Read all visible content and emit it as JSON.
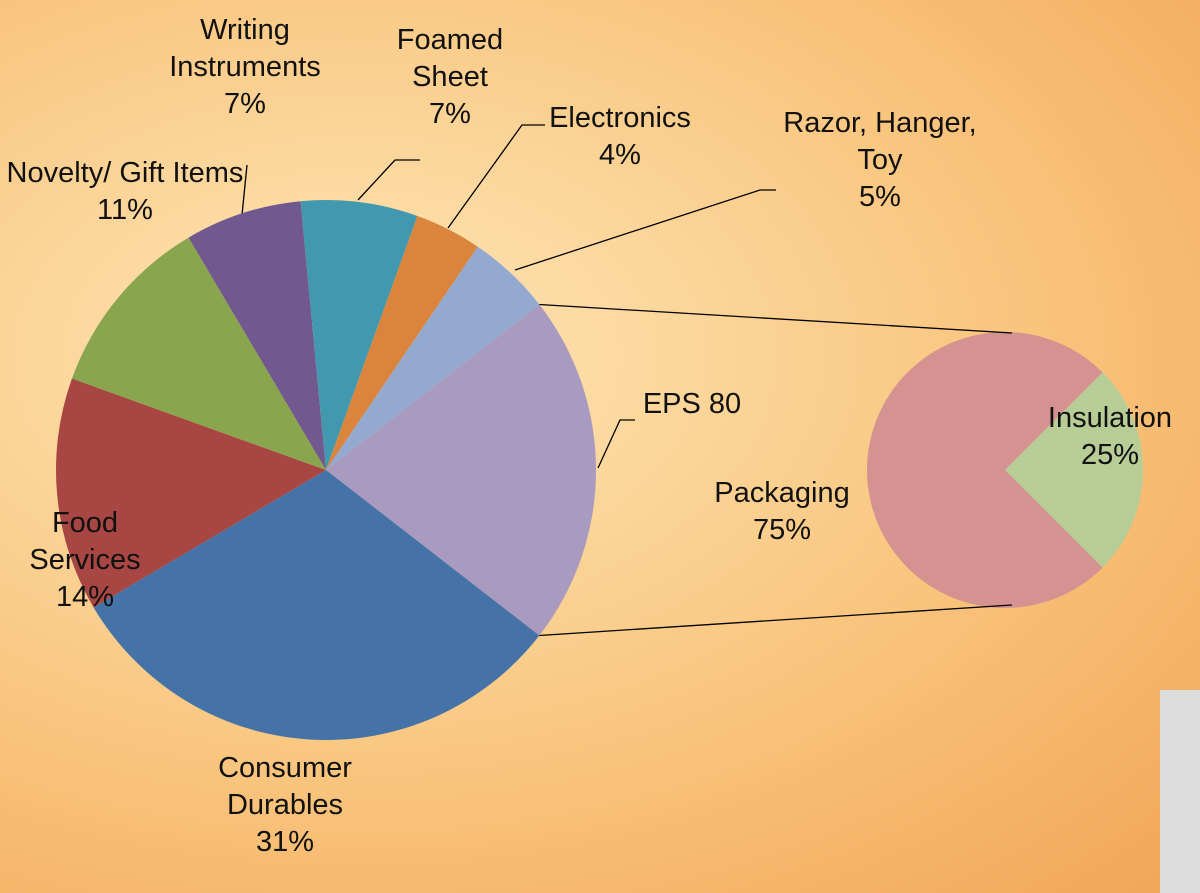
{
  "chart_data": {
    "type": "pie-of-pie",
    "categories": [
      "EPS 80",
      "Consumer Durables",
      "Food Services",
      "Novelty/ Gift Items",
      "Writing Instruments",
      "Foamed Sheet",
      "Electronics",
      "Razor, Hanger, Toy"
    ],
    "values": [
      21,
      31,
      14,
      11,
      7,
      7,
      4,
      5
    ],
    "value_labels": [
      null,
      "31%",
      "14%",
      "11%",
      "7%",
      "7%",
      "4%",
      "5%"
    ],
    "colors": [
      "#a99ac0",
      "#4573a7",
      "#a84643",
      "#89a54e",
      "#71588f",
      "#4298af",
      "#db843d",
      "#93a9cf"
    ],
    "secondary": {
      "categories": [
        "Insulation",
        "Packaging"
      ],
      "values": [
        25,
        75
      ],
      "value_labels": [
        "25%",
        "75%"
      ],
      "colors": [
        "#b8cd96",
        "#d49291"
      ]
    }
  }
}
